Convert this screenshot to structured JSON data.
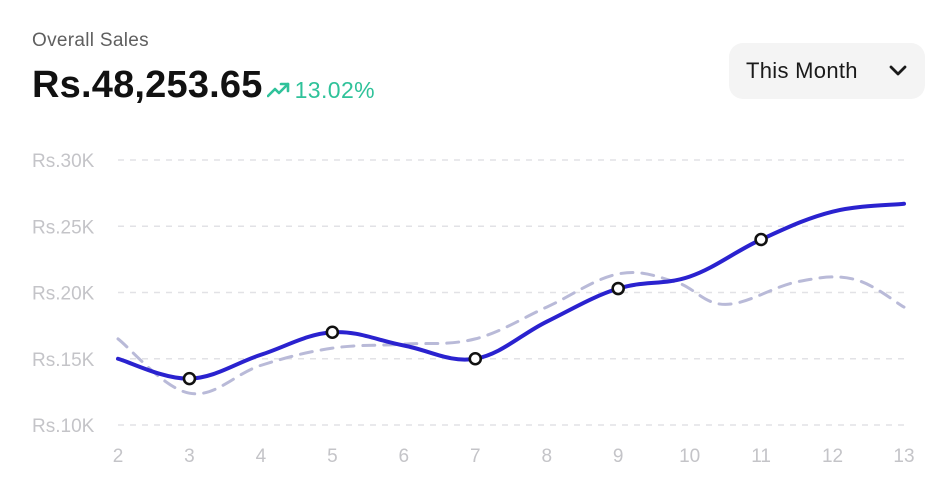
{
  "header": {
    "subtitle": "Overall Sales",
    "amount": "Rs.48,253.65",
    "change": "13.02%",
    "change_color": "#2fc29a",
    "trend_icon": "trending-up-icon"
  },
  "filter": {
    "selected": "This Month",
    "icon": "chevron-down-icon"
  },
  "chart_data": {
    "type": "line",
    "x": [
      2,
      3,
      4,
      5,
      6,
      7,
      8,
      9,
      10,
      11,
      12,
      13
    ],
    "xlim": [
      2,
      13
    ],
    "ylim": [
      10000,
      30000
    ],
    "yticks": [
      30000,
      25000,
      20000,
      15000,
      10000
    ],
    "ytick_labels": [
      "Rs.30K",
      "Rs.25K",
      "Rs.20K",
      "Rs.15K",
      "Rs.10K"
    ],
    "xtick_labels": [
      "2",
      "3",
      "4",
      "5",
      "6",
      "7",
      "8",
      "9",
      "10",
      "11",
      "12",
      "13"
    ],
    "grid": true,
    "series": [
      {
        "style": "solid",
        "color": "#2a22cf",
        "x": [
          2,
          3,
          4,
          5,
          6,
          7,
          8,
          9,
          10,
          11,
          12,
          13
        ],
        "values": [
          15000,
          13500,
          15300,
          17000,
          16000,
          15000,
          17800,
          20300,
          21200,
          24000,
          26100,
          26700
        ],
        "markers": [
          3,
          5,
          7,
          9,
          11
        ]
      },
      {
        "style": "dashed",
        "color": "#b9bad8",
        "x": [
          2,
          3,
          4,
          5,
          6,
          7,
          8,
          9,
          9.8,
          10.5,
          11.5,
          12.3,
          13
        ],
        "values": [
          16500,
          12400,
          14500,
          15800,
          16100,
          16500,
          18900,
          21400,
          20800,
          19100,
          20800,
          21000,
          18900
        ]
      }
    ]
  }
}
